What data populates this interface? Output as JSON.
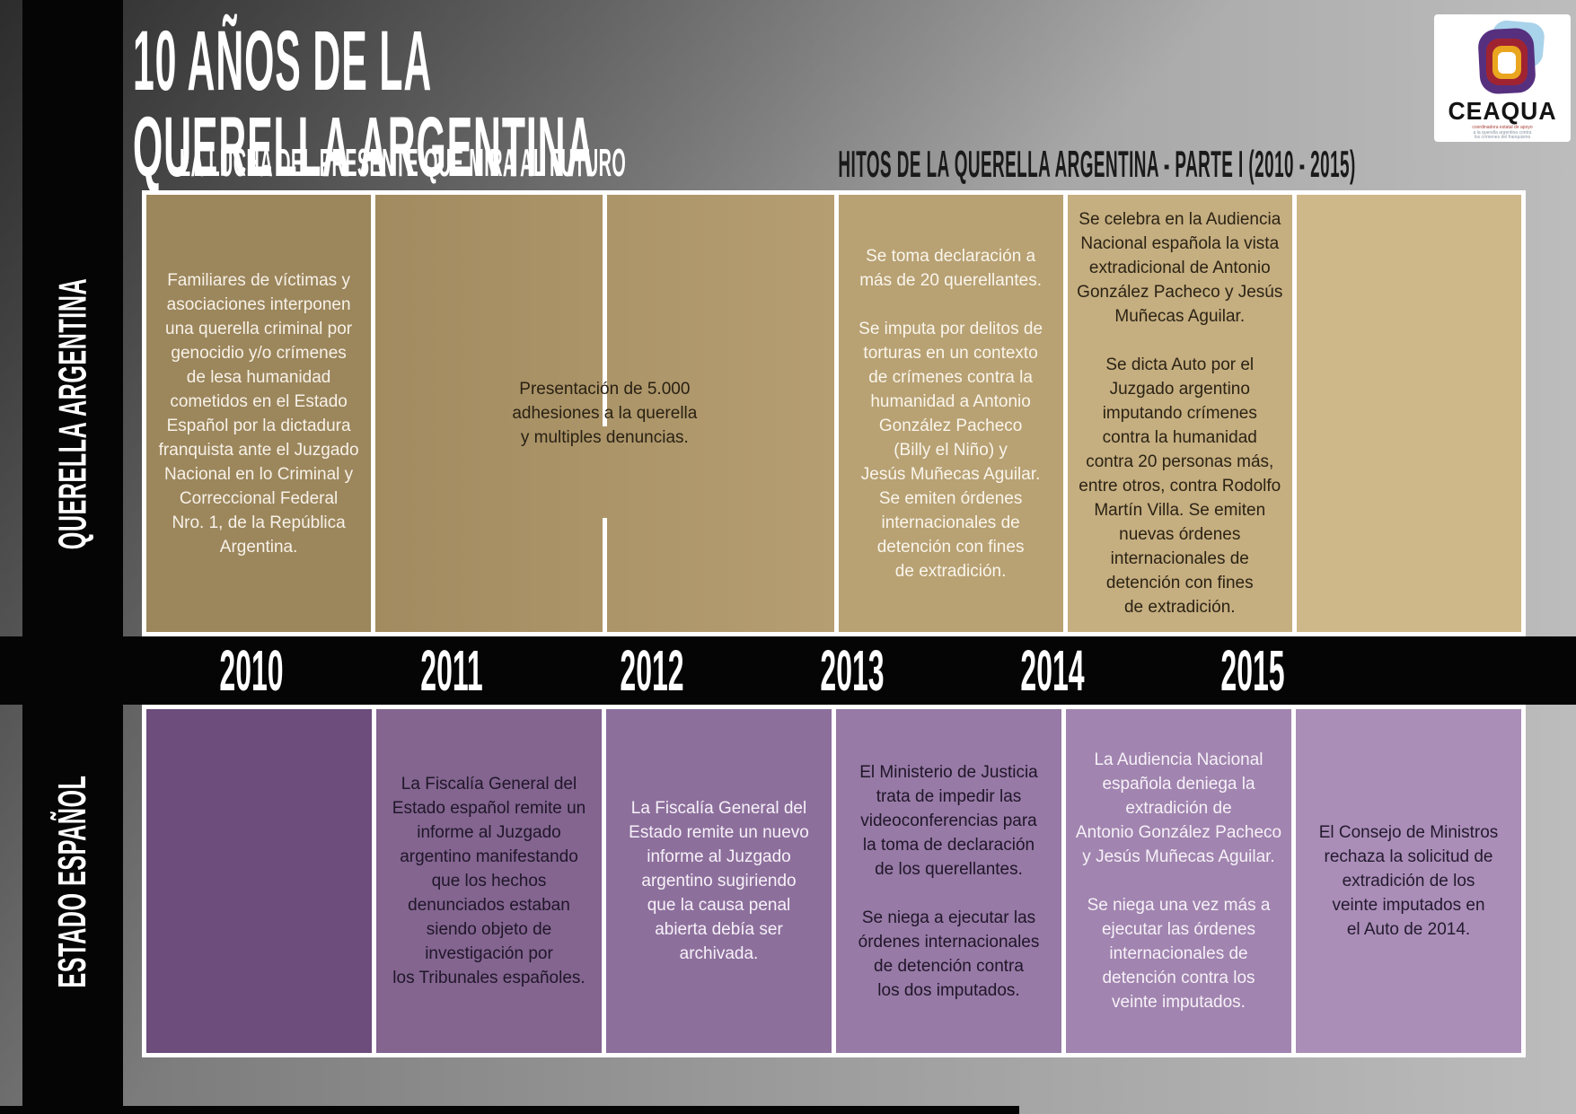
{
  "header": {
    "title_line1": "10 AÑOS DE LA",
    "title_line2": "QUERELLA ARGENTINA",
    "subtitle": "LA LUCHA DEL PRESENTE QUE MIRA AL FUTURO",
    "right_title": "HITOS DE LA QUERELLA ARGENTINA - PARTE I (2010 - 2015)"
  },
  "logo": {
    "name": "CEAQUA",
    "tagline_line1": "coordinadora estatal de apoyo",
    "tagline_line2": "a la querella argentina contra",
    "tagline_line3": "los crímenes del franquismo",
    "colors": {
      "blue": "#a9d3ea",
      "purple": "#56307f",
      "red": "#a02332",
      "gold": "#e9a61e"
    }
  },
  "timeline": {
    "years": [
      "2010",
      "2011",
      "2012",
      "2013",
      "2014",
      "2015"
    ],
    "band_color": "#050505",
    "border_color": "#ffffff",
    "top_row": {
      "label": "QUERELLA ARGENTINA",
      "cells": [
        {
          "years": "2010",
          "bg": "#9c865c",
          "fg": "#f7f2e8",
          "text": "Familiares de víctimas y\nasociaciones interponen\nuna querella criminal por\ngenocidio y/o crímenes\nde lesa humanidad\ncometidos en el Estado\nEspañol por la dictadura\nfranquista ante el Juzgado\nNacional en lo Criminal y\nCorreccional Federal\nNro. 1, de la República\nArgentina."
        },
        {
          "years": "2011-2012",
          "bg": "linear-gradient(90deg,#a28b60,#b59e71)",
          "fg": "#292113",
          "text": "Presentación de 5.000\nadhesiones a la querella\ny multiples denuncias."
        },
        {
          "years": "2013",
          "bg": "#b8a173",
          "fg": "#faf6ec",
          "text": "Se toma declaración a\nmás de 20 querellantes.\n\nSe imputa por delitos de\ntorturas en un contexto\nde crímenes contra la\nhumanidad a Antonio\nGonzález Pacheco\n(Billy el Niño) y\nJesús Muñecas Aguilar.\nSe emiten órdenes\ninternacionales de\ndetención con fines\nde extradición."
        },
        {
          "years": "2014",
          "bg": "#c5ae80",
          "fg": "#2b2314",
          "text": "Se celebra en la Audiencia\nNacional española la vista\nextradicional de Antonio\nGonzález Pacheco y Jesús\nMuñecas Aguilar.\n\nSe dicta Auto por el\nJuzgado argentino\nimputando crímenes\ncontra la humanidad\ncontra 20 personas más,\nentre otros, contra Rodolfo\nMartín Villa. Se emiten\nnuevas órdenes\ninternacionales de\ndetención con fines\nde extradición."
        },
        {
          "years": "2015",
          "bg": "#ceb788",
          "fg": "#2b2314",
          "text": ""
        }
      ]
    },
    "bottom_row": {
      "label": "ESTADO ESPAÑOL",
      "cells": [
        {
          "years": "2010",
          "bg": "#6c4d7c",
          "fg": "#f6f1f8",
          "text": ""
        },
        {
          "years": "2011",
          "bg": "#836590",
          "fg": "#201629",
          "text": "La Fiscalía General del\nEstado español remite un\ninforme al Juzgado\nargentino manifestando\nque los hechos\ndenunciados estaban\nsiendo objeto de\ninvestigación por\nlos Tribunales españoles."
        },
        {
          "years": "2012",
          "bg": "#8d6f9c",
          "fg": "#f6f1f8",
          "text": "La Fiscalía General del\nEstado remite un nuevo\ninforme al Juzgado\nargentino sugiriendo\nque la causa penal\nabierta debía ser\narchivada."
        },
        {
          "years": "2013",
          "bg": "#977aa6",
          "fg": "#201629",
          "text": "El Ministerio de Justicia\ntrata de impedir las\nvideoconferencias para\nla toma de declaración\nde los querellantes.\n\nSe niega a ejecutar las\nórdenes internacionales\nde detención contra\nlos dos imputados."
        },
        {
          "years": "2014",
          "bg": "#a184af",
          "fg": "#f6f1f8",
          "text": "La Audiencia Nacional\nespañola deniega la\nextradición de\nAntonio González Pacheco\ny Jesús Muñecas Aguilar.\n\nSe niega una vez más a\nejecutar las órdenes\ninternacionales de\ndetención contra los\nveinte imputados."
        },
        {
          "years": "2015",
          "bg": "#aa8eb8",
          "fg": "#241a2e",
          "text": "El Consejo de Ministros\nrechaza la solicitud de\nextradición de los\nveinte imputados en\nel Auto de 2014."
        }
      ]
    }
  }
}
